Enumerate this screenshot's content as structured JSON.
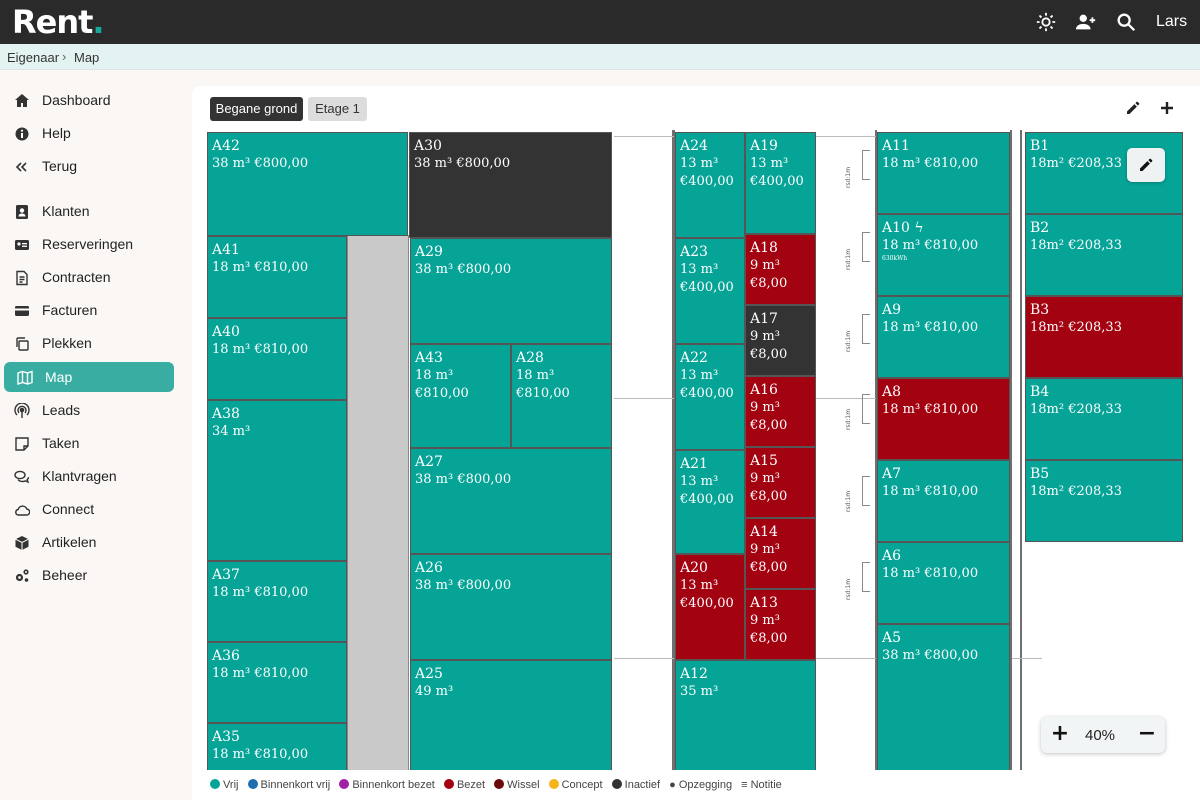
{
  "app": {
    "logo_text": "Rent",
    "logo_dot": ".",
    "user_name": "Lars",
    "accent_color": "#3aada3"
  },
  "topbar": {
    "icons": [
      "settings-gear-icon",
      "add-user-icon",
      "search-icon"
    ]
  },
  "breadcrumb": {
    "items": [
      "Eigenaar",
      "Map"
    ],
    "separator": "›"
  },
  "sidebar": {
    "items": [
      {
        "label": "Dashboard",
        "icon": "home-icon"
      },
      {
        "label": "Help",
        "icon": "info-icon"
      },
      {
        "label": "Terug",
        "icon": "double-chevron-left-icon"
      },
      {
        "label": "Klanten",
        "icon": "contact-card-icon"
      },
      {
        "label": "Reserveringen",
        "icon": "id-card-icon"
      },
      {
        "label": "Contracten",
        "icon": "document-icon"
      },
      {
        "label": "Facturen",
        "icon": "credit-card-icon"
      },
      {
        "label": "Plekken",
        "icon": "copy-icon"
      },
      {
        "label": "Map",
        "icon": "map-icon",
        "active": true
      },
      {
        "label": "Leads",
        "icon": "broadcast-icon"
      },
      {
        "label": "Taken",
        "icon": "note-icon"
      },
      {
        "label": "Klantvragen",
        "icon": "chat-bubbles-icon"
      },
      {
        "label": "Connect",
        "icon": "cloud-icon"
      },
      {
        "label": "Artikelen",
        "icon": "box-icon"
      },
      {
        "label": "Beheer",
        "icon": "cogs-icon"
      }
    ]
  },
  "floors": {
    "tabs": [
      "Begane grond",
      "Etage 1"
    ],
    "selected": "Begane grond"
  },
  "toolbar": {
    "icons": [
      "pencil-edit-icon",
      "plus-add-icon"
    ]
  },
  "units": [
    {
      "name": "A42",
      "info": "38 m³ €800,00",
      "status": "vrij"
    },
    {
      "name": "A41",
      "info": "18 m³ €810,00",
      "status": "vrij"
    },
    {
      "name": "A40",
      "info": "18 m³ €810,00",
      "status": "vrij"
    },
    {
      "name": "A38",
      "info": "34 m³",
      "status": "vrij"
    },
    {
      "name": "A37",
      "info": "18 m³ €810,00",
      "status": "vrij"
    },
    {
      "name": "A36",
      "info": "18 m³ €810,00",
      "status": "vrij"
    },
    {
      "name": "A35",
      "info": "18 m³ €810,00",
      "status": "vrij"
    },
    {
      "name": "A30",
      "info": "38 m³ €800,00",
      "status": "inactief"
    },
    {
      "name": "A29",
      "info": "38 m³ €800,00",
      "status": "vrij"
    },
    {
      "name": "A43",
      "info": "18 m³ €810,00",
      "status": "vrij"
    },
    {
      "name": "A28",
      "info": "18 m³ €810,00",
      "status": "vrij"
    },
    {
      "name": "A27",
      "info": "38 m³ €800,00",
      "status": "vrij"
    },
    {
      "name": "A26",
      "info": "38 m³ €800,00",
      "status": "vrij"
    },
    {
      "name": "A25",
      "info": "49 m³",
      "status": "vrij"
    },
    {
      "name": "A24",
      "info": "13 m³ €400,00",
      "status": "vrij"
    },
    {
      "name": "A23",
      "info": "13 m³ €400,00",
      "status": "vrij"
    },
    {
      "name": "A22",
      "info": "13 m³ €400,00",
      "status": "vrij"
    },
    {
      "name": "A21",
      "info": "13 m³ €400,00",
      "status": "vrij"
    },
    {
      "name": "A20",
      "info": "13 m³ €400,00",
      "status": "bezet"
    },
    {
      "name": "A12",
      "info": "35 m³",
      "status": "vrij"
    },
    {
      "name": "A19",
      "info": "13 m³ €400,00",
      "status": "vrij"
    },
    {
      "name": "A18",
      "info": "9 m³ €8,00",
      "status": "bezet"
    },
    {
      "name": "A17",
      "info": "9 m³ €8,00",
      "status": "inactief"
    },
    {
      "name": "A16",
      "info": "9 m³ €8,00",
      "status": "bezet"
    },
    {
      "name": "A15",
      "info": "9 m³ €8,00",
      "status": "bezet"
    },
    {
      "name": "A14",
      "info": "9 m³ €8,00",
      "status": "bezet"
    },
    {
      "name": "A13",
      "info": "9 m³ €8,00",
      "status": "bezet"
    },
    {
      "name": "A11",
      "info": "18 m³ €810,00",
      "status": "vrij"
    },
    {
      "name": "A10 ϟ",
      "info": "18 m³ €810,00",
      "extra": "630kWh",
      "status": "vrij"
    },
    {
      "name": "A9",
      "info": "18 m³ €810,00",
      "status": "vrij"
    },
    {
      "name": "A8",
      "info": "18 m³ €810,00",
      "status": "bezet"
    },
    {
      "name": "A7",
      "info": "18 m³ €810,00",
      "status": "vrij"
    },
    {
      "name": "A6",
      "info": "18 m³ €810,00",
      "status": "vrij"
    },
    {
      "name": "A5",
      "info": "38 m³ €800,00",
      "status": "vrij"
    },
    {
      "name": "B1",
      "info": "18m² €208,33",
      "status": "vrij"
    },
    {
      "name": "B2",
      "info": "18m² €208,33",
      "status": "vrij"
    },
    {
      "name": "B3",
      "info": "18m² €208,33",
      "status": "bezet"
    },
    {
      "name": "B4",
      "info": "18m² €208,33",
      "status": "vrij"
    },
    {
      "name": "B5",
      "info": "18m² €208,33",
      "status": "vrij"
    }
  ],
  "door_labels": [
    "rsd:1m",
    "rsd:1m",
    "rsd:1m",
    "rsd:1m",
    "rsd:1m",
    "rsd:1m"
  ],
  "zoom": {
    "level": "40%",
    "zoom_in": "+",
    "zoom_out": "−"
  },
  "legend": [
    {
      "label": "Vrij",
      "color": "#05a497"
    },
    {
      "label": "Binnenkort vrij",
      "color": "#1f6fb0"
    },
    {
      "label": "Binnenkort bezet",
      "color": "#a51ea8"
    },
    {
      "label": "Bezet",
      "color": "#a30210"
    },
    {
      "label": "Wissel",
      "color": "#6b0a0a"
    },
    {
      "label": "Concept",
      "color": "#f4b41a"
    },
    {
      "label": "Inactief",
      "color": "#333333"
    },
    {
      "label": "● Opzegging",
      "color": ""
    },
    {
      "label": "≡ Notitie",
      "color": ""
    }
  ]
}
